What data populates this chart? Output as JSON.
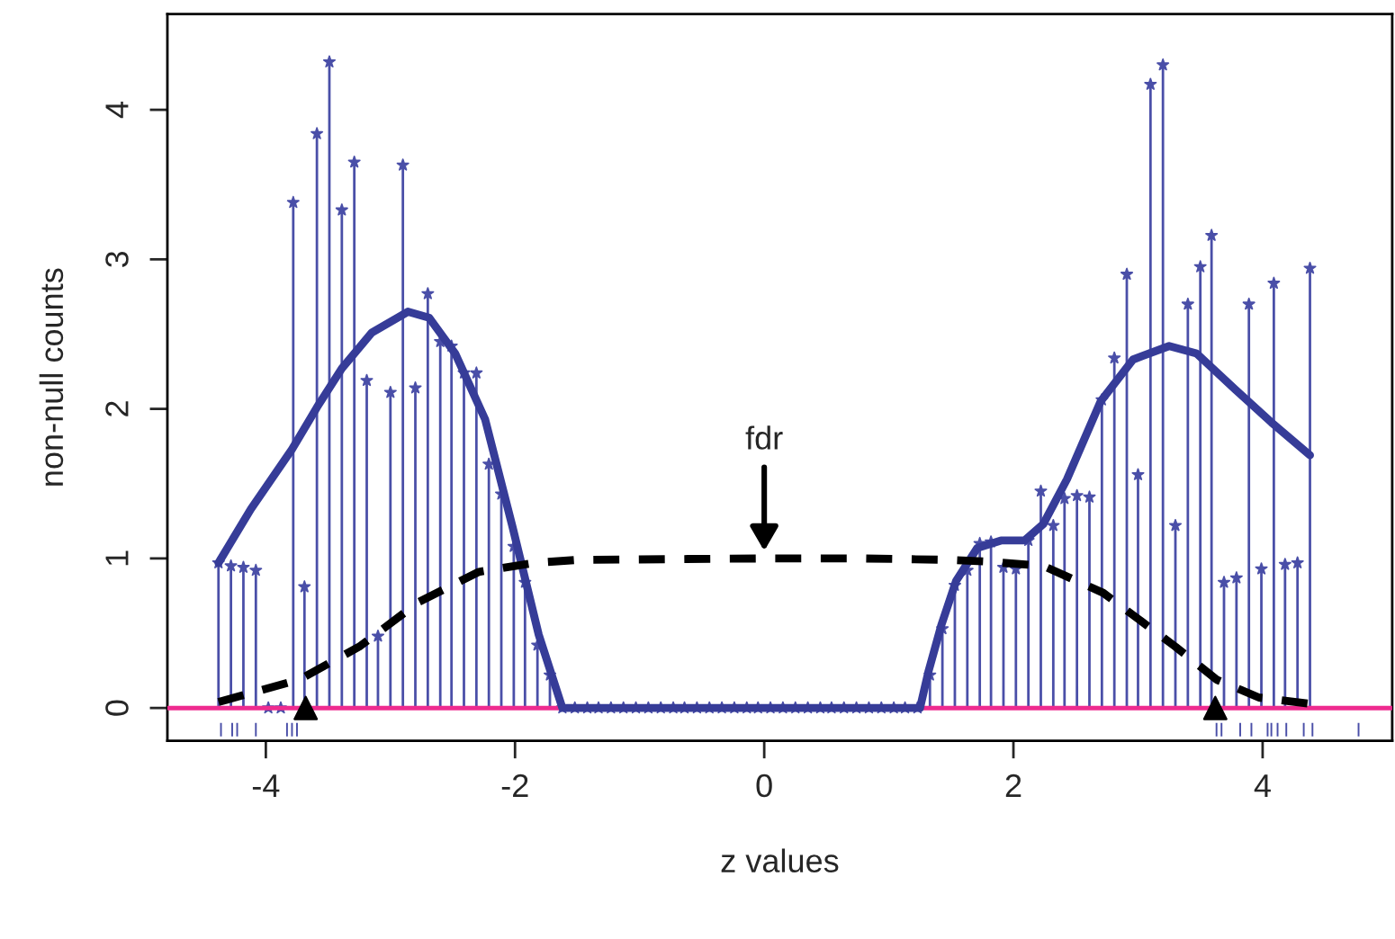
{
  "chart_data": {
    "type": "lollipop",
    "xlabel": "z values",
    "ylabel": "non-null counts",
    "xlim": [
      -4.79,
      5.04
    ],
    "ylim": [
      -0.22,
      4.64
    ],
    "xticks": [
      -4,
      -2,
      0,
      2,
      4
    ],
    "yticks": [
      0,
      1,
      2,
      3,
      4
    ],
    "grid": false,
    "legend": false,
    "series": [
      {
        "color": "#4a4fa8",
        "marker": "star",
        "x": [
          -4.38,
          -4.28,
          -4.18,
          -4.08,
          -3.98,
          -3.88,
          -3.78,
          -3.69,
          -3.59,
          -3.49,
          -3.39,
          -3.29,
          -3.19,
          -3.1,
          -3.0,
          -2.9,
          -2.8,
          -2.7,
          -2.6,
          -2.51,
          -2.41,
          -2.31,
          -2.21,
          -2.11,
          -2.01,
          -1.92,
          -1.82,
          -1.72,
          -1.62,
          -1.52,
          -1.42,
          -1.33,
          -1.23,
          -1.13,
          -1.03,
          -0.93,
          -0.83,
          -0.73,
          -0.64,
          -0.54,
          -0.44,
          -0.34,
          -0.24,
          -0.14,
          -0.05,
          0.05,
          0.15,
          0.25,
          0.35,
          0.45,
          0.54,
          0.64,
          0.74,
          0.84,
          0.94,
          1.04,
          1.13,
          1.23,
          1.33,
          1.43,
          1.53,
          1.63,
          1.73,
          1.82,
          1.92,
          2.02,
          2.12,
          2.22,
          2.32,
          2.41,
          2.51,
          2.61,
          2.71,
          2.81,
          2.91,
          3.0,
          3.1,
          3.2,
          3.3,
          3.4,
          3.5,
          3.59,
          3.69,
          3.79,
          3.89,
          3.99,
          4.09,
          4.18,
          4.28,
          4.38
        ],
        "values": [
          0.97,
          0.95,
          0.94,
          0.92,
          0,
          0,
          3.38,
          0.81,
          3.84,
          4.32,
          3.33,
          3.65,
          2.19,
          0.48,
          2.11,
          3.63,
          2.14,
          2.77,
          2.45,
          2.42,
          2.24,
          2.24,
          1.63,
          1.43,
          1.08,
          0.84,
          0.42,
          0.22,
          0,
          0,
          0,
          0,
          0,
          0,
          0,
          0,
          0,
          0,
          0,
          0,
          0,
          0,
          0,
          0,
          0,
          0,
          0,
          0,
          0,
          0,
          0,
          0,
          0,
          0,
          0,
          0,
          0,
          0,
          0.22,
          0.53,
          0.82,
          0.92,
          1.1,
          1.11,
          0.94,
          0.93,
          1.12,
          1.45,
          1.22,
          1.4,
          1.42,
          1.41,
          2.06,
          2.34,
          2.9,
          1.56,
          4.17,
          4.3,
          1.22,
          2.7,
          2.95,
          3.16,
          0.84,
          0.87,
          2.7,
          0.93,
          2.84,
          0.96,
          0.97,
          2.94
        ]
      },
      {
        "type": "line",
        "color": "#363c98",
        "line_style": "solid",
        "x": [
          -4.38,
          -4.12,
          -3.79,
          -3.59,
          -3.39,
          -3.15,
          -2.86,
          -2.69,
          -2.48,
          -2.24,
          -2.02,
          -1.81,
          -1.62,
          1.25,
          1.32,
          1.42,
          1.54,
          1.71,
          1.9,
          2.09,
          2.24,
          2.43,
          2.7,
          2.96,
          3.25,
          3.47,
          3.78,
          4.07,
          4.38
        ],
        "values": [
          0.97,
          1.33,
          1.73,
          2.01,
          2.27,
          2.51,
          2.65,
          2.61,
          2.37,
          1.93,
          1.21,
          0.49,
          0,
          0,
          0.25,
          0.55,
          0.85,
          1.07,
          1.12,
          1.12,
          1.23,
          1.53,
          2.05,
          2.33,
          2.42,
          2.37,
          2.13,
          1.91,
          1.69
        ]
      },
      {
        "type": "line",
        "color": "#000000",
        "line_style": "dashed",
        "x": [
          -4.38,
          -3.73,
          -3.25,
          -2.77,
          -2.29,
          -1.85,
          -1.5,
          0,
          0.79,
          1.5,
          1.76,
          2.24,
          2.72,
          3.01,
          3.3,
          3.63,
          3.97,
          4.36
        ],
        "values": [
          0.04,
          0.19,
          0.41,
          0.71,
          0.91,
          0.97,
          0.99,
          1.0,
          1.0,
          0.99,
          0.98,
          0.95,
          0.77,
          0.59,
          0.41,
          0.19,
          0.07,
          0.03
        ]
      },
      {
        "type": "scatter",
        "color": "#000000",
        "marker": "triangle",
        "x": [
          -3.68,
          3.62
        ],
        "values": [
          0,
          0
        ]
      },
      {
        "type": "bar",
        "color": "#4a4fa8",
        "base": [
          -0.19,
          -0.19,
          -0.19,
          -0.19,
          -0.19,
          -0.19,
          -0.19,
          -0.19,
          -0.19,
          -0.19,
          -0.19,
          -0.19,
          -0.19,
          -0.19,
          -0.19,
          -0.19,
          -0.19,
          -0.19
        ],
        "x": [
          -4.36,
          -4.27,
          -4.23,
          -4.08,
          -3.83,
          -3.79,
          -3.75,
          3.63,
          3.67,
          3.82,
          3.91,
          4.04,
          4.07,
          4.12,
          4.19,
          4.33,
          4.4,
          4.77
        ],
        "values": [
          0.09,
          0.09,
          0.09,
          0.09,
          0.09,
          0.09,
          0.09,
          0.09,
          0.09,
          0.09,
          0.09,
          0.09,
          0.09,
          0.09,
          0.09,
          0.09,
          0.09,
          0.09
        ]
      }
    ],
    "ref_lines": [
      {
        "axis": "y",
        "value": 0,
        "color": "#ee2b8f",
        "line_style": "solid"
      }
    ],
    "annotations": [
      {
        "text": "fdr",
        "x": 0,
        "y": 1.0
      }
    ]
  }
}
